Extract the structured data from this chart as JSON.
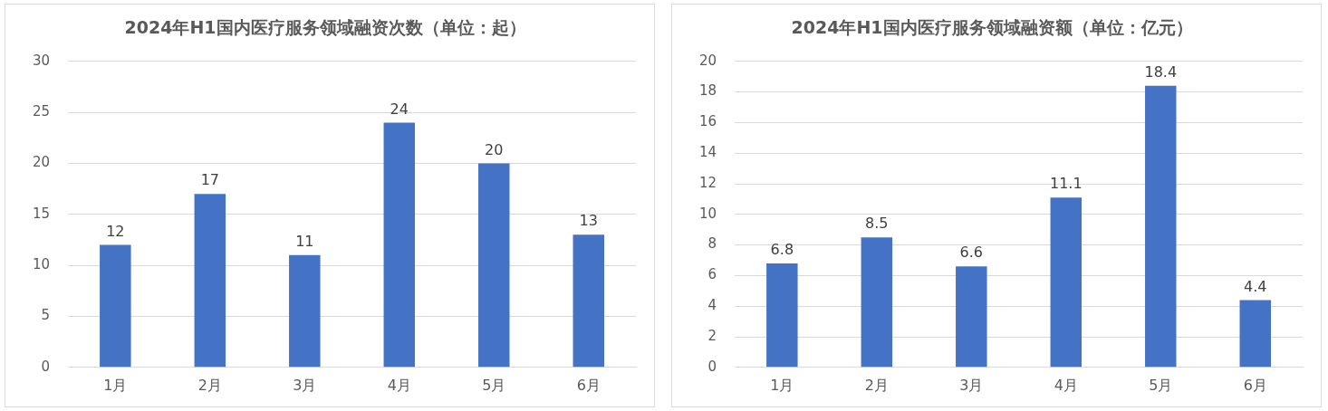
{
  "chart_data": [
    {
      "type": "bar",
      "title": "2024年H1国内医疗服务领域融资次数（单位：起）",
      "categories": [
        "1月",
        "2月",
        "3月",
        "4月",
        "5月",
        "6月"
      ],
      "values": [
        12,
        17,
        11,
        24,
        20,
        13
      ],
      "color": "#4472c4",
      "ylim": [
        0,
        30
      ],
      "yticks": [
        0,
        5,
        10,
        15,
        20,
        25,
        30
      ],
      "grid": "y",
      "data_labels": true
    },
    {
      "type": "bar",
      "title": "2024年H1国内医疗服务领域融资额（单位：亿元）",
      "categories": [
        "1月",
        "2月",
        "3月",
        "4月",
        "5月",
        "6月"
      ],
      "values": [
        6.8,
        8.5,
        6.6,
        11.1,
        18.4,
        4.4
      ],
      "color": "#4472c4",
      "ylim": [
        0,
        20
      ],
      "yticks": [
        0,
        2,
        4,
        6,
        8,
        10,
        12,
        14,
        16,
        18,
        20
      ],
      "grid": "y",
      "data_labels": true
    }
  ]
}
